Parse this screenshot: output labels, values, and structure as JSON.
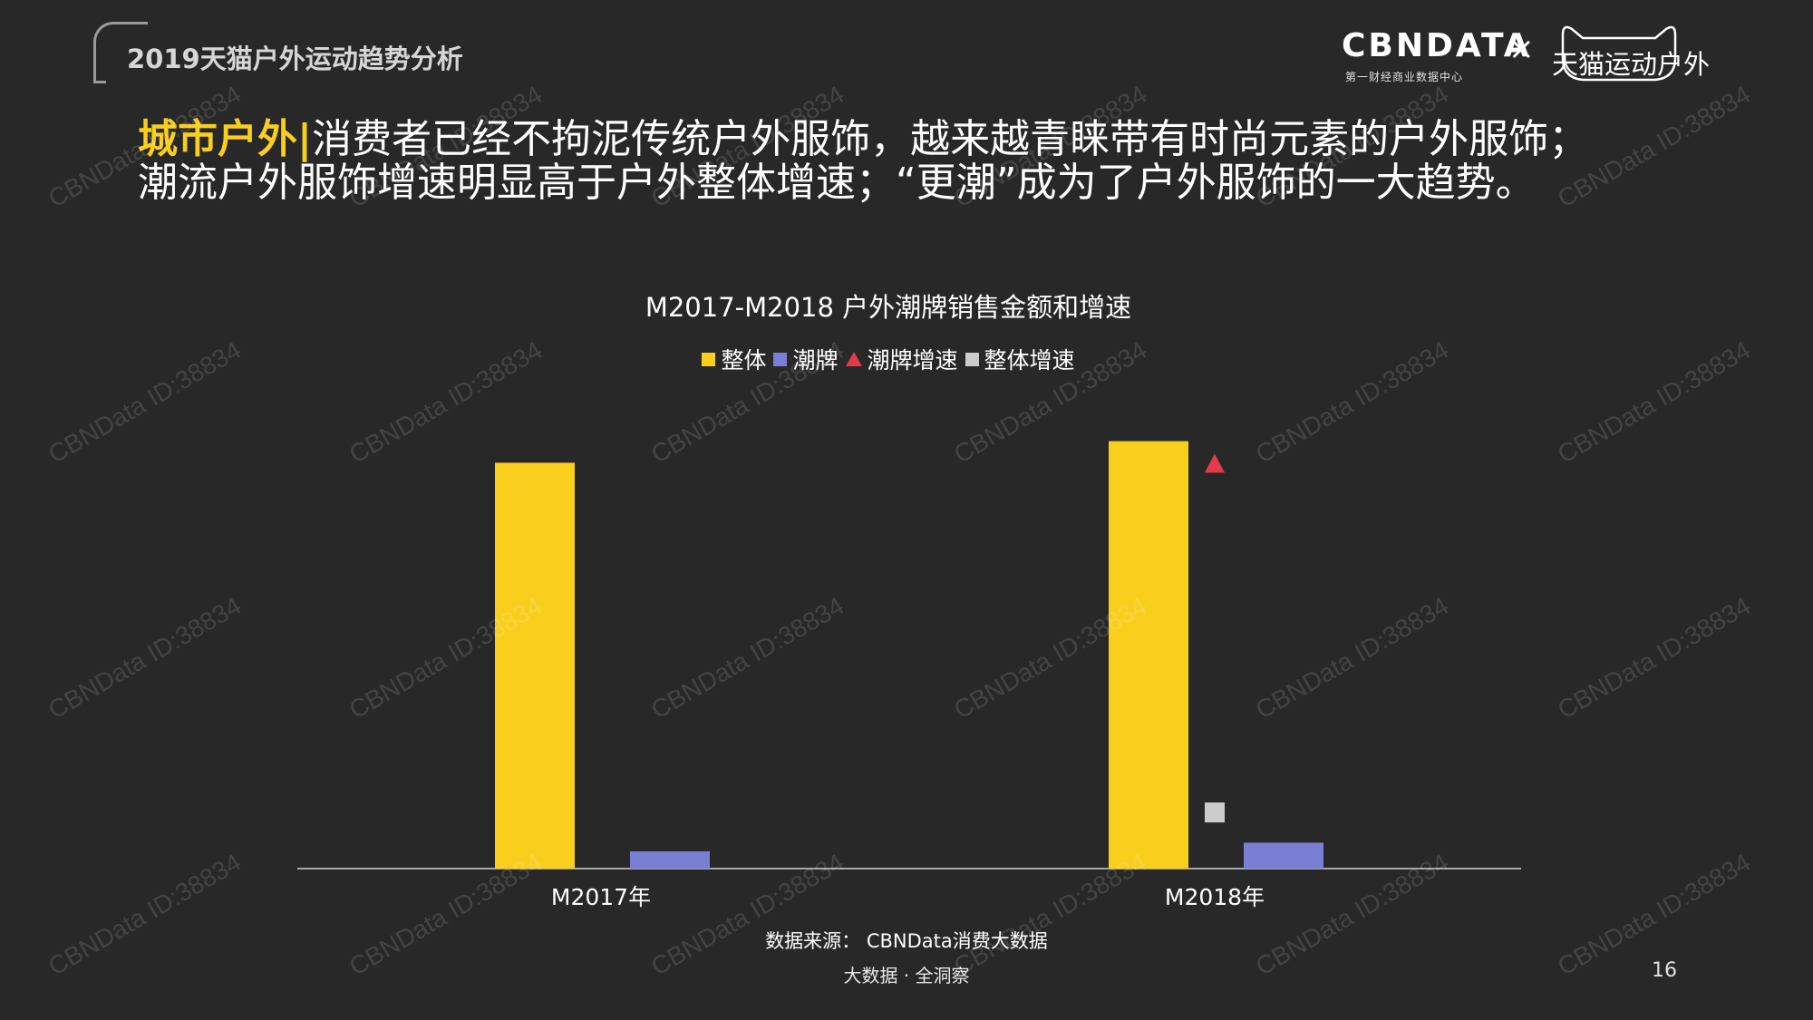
{
  "header": {
    "title": "2019天猫户外运动趋势分析"
  },
  "logos": {
    "cbndata": "CBNDATA",
    "cbndata_sub": "第一财经商业数据中心",
    "times": "×",
    "tmall": "天猫运动户外"
  },
  "headline": {
    "highlight": "城市户外|",
    "line1": "消费者已经不拘泥传统户外服饰，越来越青睐带有时尚元素的户外服饰；",
    "line2": "潮流户外服饰增速明显高于户外整体增速；“更潮”成为了户外服饰的一大趋势。"
  },
  "colors": {
    "overall": "#f9ce1d",
    "trend": "#7a7ed4",
    "trend_growth": "#e43a4a",
    "overall_growth": "#cccccc"
  },
  "chart_data": {
    "type": "bar",
    "title": "M2017-M2018 户外潮牌销售金额和增速",
    "categories": [
      "M2017年",
      "M2018年"
    ],
    "series": [
      {
        "name": "整体",
        "kind": "bar",
        "values": [
          94,
          99
        ]
      },
      {
        "name": "潮牌",
        "kind": "bar",
        "values": [
          4,
          6
        ]
      },
      {
        "name": "潮牌增速",
        "kind": "marker-triangle",
        "values": [
          null,
          94
        ]
      },
      {
        "name": "整体增速",
        "kind": "marker-square",
        "values": [
          null,
          13
        ]
      }
    ],
    "ylim": [
      0,
      105
    ],
    "legend": "top-center",
    "grid": false
  },
  "source": "数据来源： CBNData消费大数据",
  "footer": "大数据 · 全洞察",
  "page_number": "16",
  "watermark": "CBNData ID:38834"
}
